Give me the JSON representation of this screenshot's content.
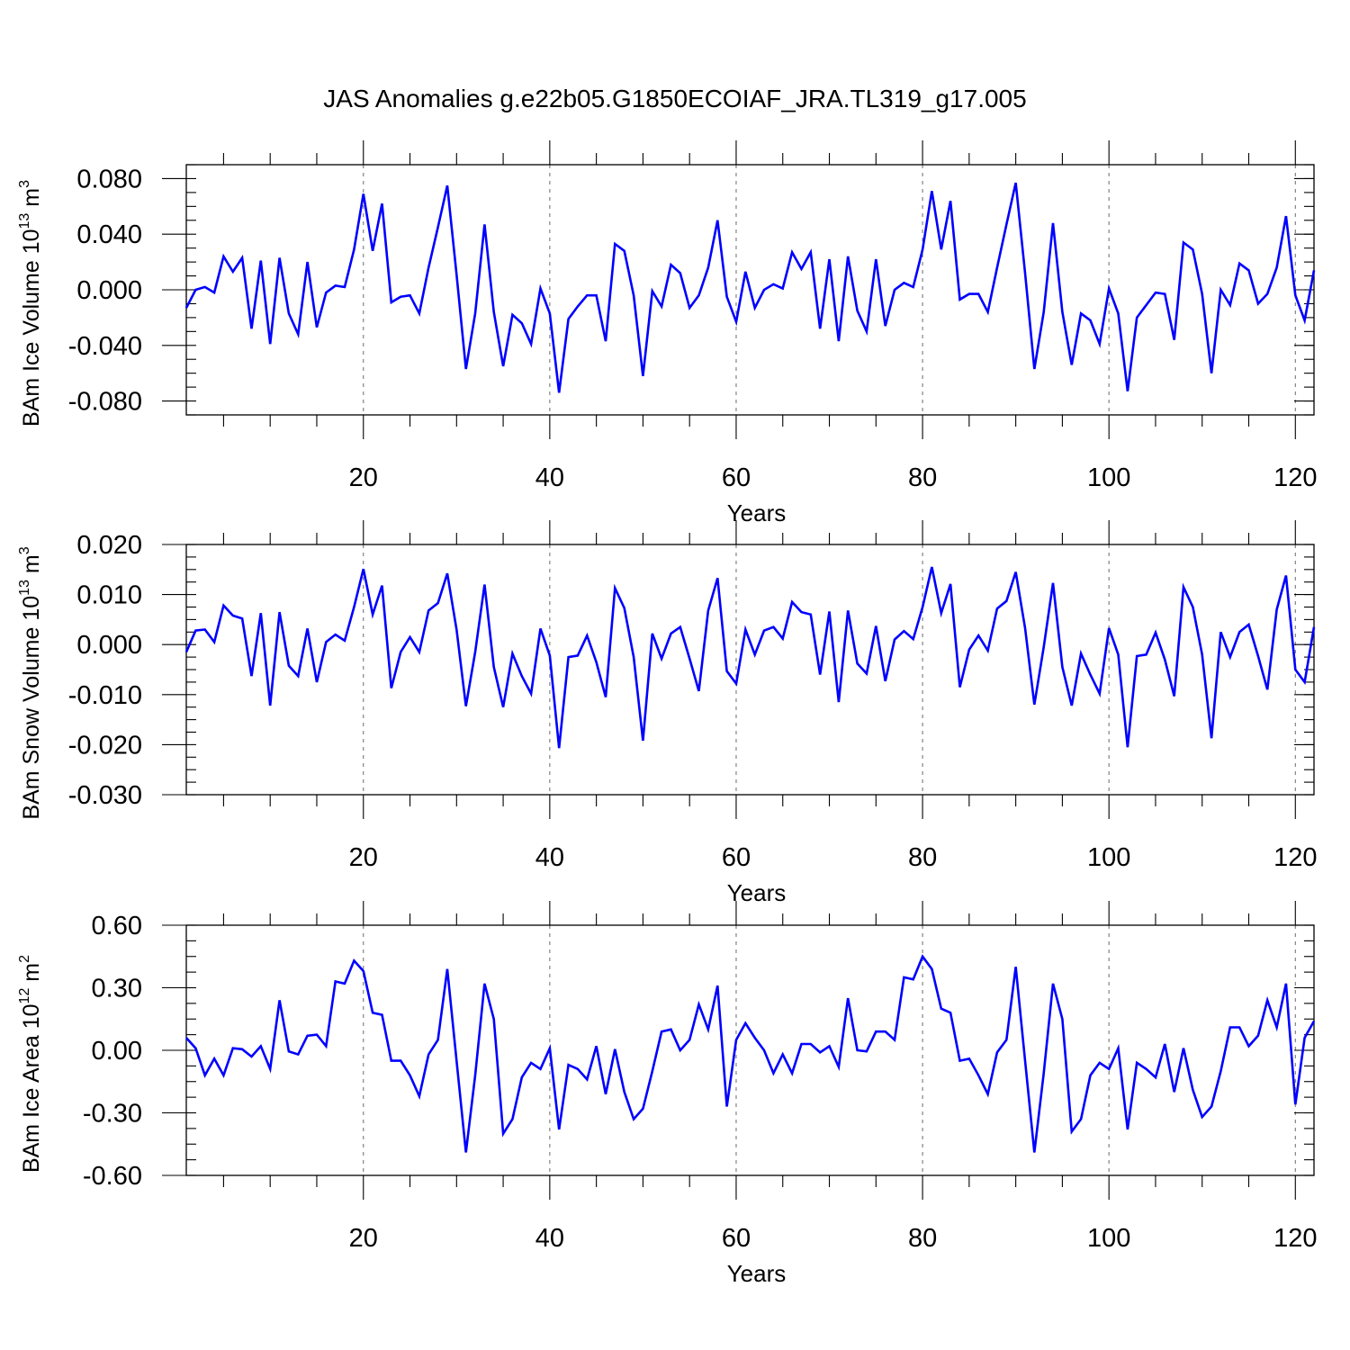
{
  "title": "JAS Anomalies g.e22b05.G1850ECOIAF_JRA.TL319_g17.005",
  "colors": {
    "series": "#0000ff",
    "grid": "#777777",
    "axis": "#000000"
  },
  "chart_data": [
    {
      "type": "line",
      "xlabel": "Years",
      "ylabel": {
        "main": "BAm Ice Volume 10",
        "exp": "13",
        "unit": " m",
        "unit_exp": "3"
      },
      "xlim": [
        1,
        122
      ],
      "ylim": [
        -0.09,
        0.09
      ],
      "x_ticks": [
        20,
        40,
        60,
        80,
        100,
        120
      ],
      "x_tick_labels": [
        "20",
        "40",
        "60",
        "80",
        "100",
        "120"
      ],
      "y_ticks": [
        0.08,
        0.04,
        0.0,
        -0.04,
        -0.08
      ],
      "y_tick_labels": [
        "0.080",
        "0.040",
        "0.000",
        "-0.040",
        "-0.080"
      ],
      "grid": "vertical dashed at major x ticks",
      "x_start": 1,
      "values": [
        -0.013,
        0.0,
        0.002,
        -0.002,
        0.024,
        0.013,
        0.023,
        -0.028,
        0.021,
        -0.039,
        0.023,
        -0.017,
        -0.032,
        0.02,
        -0.027,
        -0.002,
        0.003,
        0.002,
        0.029,
        0.069,
        0.028,
        0.062,
        -0.009,
        -0.005,
        -0.004,
        -0.017,
        0.016,
        0.045,
        0.075,
        0.011,
        -0.057,
        -0.017,
        0.047,
        -0.016,
        -0.055,
        -0.018,
        -0.024,
        -0.039,
        0.001,
        -0.017,
        -0.074,
        -0.021,
        -0.012,
        -0.004,
        -0.004,
        -0.037,
        0.033,
        0.028,
        -0.004,
        -0.062,
        -0.001,
        -0.012,
        0.018,
        0.012,
        -0.013,
        -0.004,
        0.016,
        0.05,
        -0.005,
        -0.023,
        0.013,
        -0.013,
        0.0,
        0.004,
        0.001,
        0.027,
        0.015,
        0.027,
        -0.028,
        0.022,
        -0.037,
        0.024,
        -0.015,
        -0.03,
        0.022,
        -0.026,
        0.0,
        0.005,
        0.002,
        0.029,
        0.071,
        0.029,
        0.064,
        -0.007,
        -0.003,
        -0.003,
        -0.016,
        0.016,
        0.047,
        0.077,
        0.012,
        -0.057,
        -0.016,
        0.048,
        -0.016,
        -0.054,
        -0.017,
        -0.022,
        -0.039,
        0.001,
        -0.017,
        -0.073,
        -0.02,
        -0.011,
        -0.002,
        -0.003,
        -0.036,
        0.034,
        0.029,
        -0.003,
        -0.06,
        0.0,
        -0.011,
        0.019,
        0.014,
        -0.01,
        -0.003,
        0.016,
        0.053,
        -0.004,
        -0.022,
        0.014
      ]
    },
    {
      "type": "line",
      "xlabel": "Years",
      "ylabel": {
        "main": "BAm Snow Volume 10",
        "exp": "13",
        "unit": " m",
        "unit_exp": "3"
      },
      "xlim": [
        1,
        122
      ],
      "ylim": [
        -0.03,
        0.02
      ],
      "x_ticks": [
        20,
        40,
        60,
        80,
        100,
        120
      ],
      "x_tick_labels": [
        "20",
        "40",
        "60",
        "80",
        "100",
        "120"
      ],
      "y_ticks": [
        0.02,
        0.01,
        0.0,
        -0.01,
        -0.02,
        -0.03
      ],
      "y_tick_labels": [
        "0.020",
        "0.010",
        "0.000",
        "-0.010",
        "-0.020",
        "-0.030"
      ],
      "grid": "vertical dashed at major x ticks",
      "x_start": 1,
      "values": [
        -0.0015,
        0.0028,
        0.003,
        0.0005,
        0.0078,
        0.0058,
        0.0052,
        -0.0063,
        0.0063,
        -0.0122,
        0.0065,
        -0.0042,
        -0.0063,
        0.0032,
        -0.0075,
        0.0005,
        0.002,
        0.0008,
        0.0075,
        0.0151,
        0.006,
        0.0118,
        -0.0087,
        -0.0015,
        0.0015,
        -0.0015,
        0.0068,
        0.0083,
        0.0142,
        0.003,
        -0.0123,
        -0.0015,
        0.012,
        -0.0045,
        -0.0125,
        -0.0018,
        -0.0063,
        -0.0098,
        0.0032,
        -0.0022,
        -0.0207,
        -0.0025,
        -0.0022,
        0.0018,
        -0.0035,
        -0.0105,
        0.0113,
        0.0073,
        -0.0025,
        -0.0192,
        0.0022,
        -0.0028,
        0.0022,
        0.0035,
        -0.0028,
        -0.0093,
        0.0068,
        0.0133,
        -0.0053,
        -0.0078,
        0.003,
        -0.002,
        0.0028,
        0.0035,
        0.0012,
        0.0085,
        0.0065,
        0.006,
        -0.006,
        0.0066,
        -0.0115,
        0.0068,
        -0.0038,
        -0.0058,
        0.0037,
        -0.0073,
        0.001,
        0.0027,
        0.0011,
        0.0075,
        0.0155,
        0.0063,
        0.0121,
        -0.0085,
        -0.001,
        0.0018,
        -0.0012,
        0.0072,
        0.0087,
        0.0145,
        0.0033,
        -0.012,
        -0.0005,
        0.0123,
        -0.0045,
        -0.0122,
        -0.0018,
        -0.006,
        -0.0098,
        0.0033,
        -0.002,
        -0.0205,
        -0.0023,
        -0.002,
        0.0024,
        -0.003,
        -0.0103,
        0.0115,
        0.0075,
        -0.002,
        -0.0187,
        0.0025,
        -0.0025,
        0.0025,
        0.004,
        -0.0023,
        -0.009,
        0.007,
        0.0138,
        -0.005,
        -0.0075,
        0.0035
      ]
    },
    {
      "type": "line",
      "xlabel": "Years",
      "ylabel": {
        "main": "BAm Ice Area 10",
        "exp": "12",
        "unit": " m",
        "unit_exp": "2"
      },
      "xlim": [
        1,
        122
      ],
      "ylim": [
        -0.6,
        0.6
      ],
      "x_ticks": [
        20,
        40,
        60,
        80,
        100,
        120
      ],
      "x_tick_labels": [
        "20",
        "40",
        "60",
        "80",
        "100",
        "120"
      ],
      "y_ticks": [
        0.6,
        0.3,
        0.0,
        -0.3,
        -0.6
      ],
      "y_tick_labels": [
        "0.60",
        "0.30",
        "0.00",
        "-0.30",
        "-0.60"
      ],
      "grid": "vertical dashed at major x ticks",
      "x_start": 1,
      "values": [
        0.06,
        0.01,
        -0.12,
        -0.04,
        -0.12,
        0.01,
        0.005,
        -0.03,
        0.02,
        -0.09,
        0.24,
        -0.005,
        -0.02,
        0.07,
        0.075,
        0.02,
        0.33,
        0.32,
        0.43,
        0.38,
        0.18,
        0.17,
        -0.05,
        -0.05,
        -0.12,
        -0.22,
        -0.02,
        0.05,
        0.39,
        -0.05,
        -0.49,
        -0.12,
        0.32,
        0.15,
        -0.4,
        -0.33,
        -0.13,
        -0.06,
        -0.09,
        0.01,
        -0.38,
        -0.07,
        -0.09,
        -0.14,
        0.02,
        -0.21,
        0.005,
        -0.2,
        -0.33,
        -0.28,
        -0.1,
        0.09,
        0.1,
        0.0,
        0.05,
        0.22,
        0.1,
        0.31,
        -0.27,
        0.05,
        0.13,
        0.06,
        0.0,
        -0.11,
        -0.02,
        -0.11,
        0.03,
        0.03,
        -0.01,
        0.02,
        -0.08,
        0.25,
        0.0,
        -0.005,
        0.09,
        0.09,
        0.05,
        0.35,
        0.34,
        0.45,
        0.39,
        0.2,
        0.18,
        -0.05,
        -0.04,
        -0.12,
        -0.21,
        -0.01,
        0.05,
        0.4,
        -0.05,
        -0.49,
        -0.11,
        0.32,
        0.15,
        -0.39,
        -0.33,
        -0.12,
        -0.06,
        -0.09,
        0.01,
        -0.38,
        -0.06,
        -0.09,
        -0.13,
        0.03,
        -0.2,
        0.01,
        -0.19,
        -0.32,
        -0.27,
        -0.1,
        0.11,
        0.11,
        0.02,
        0.07,
        0.24,
        0.11,
        0.32,
        -0.26,
        0.06,
        0.14
      ]
    }
  ]
}
